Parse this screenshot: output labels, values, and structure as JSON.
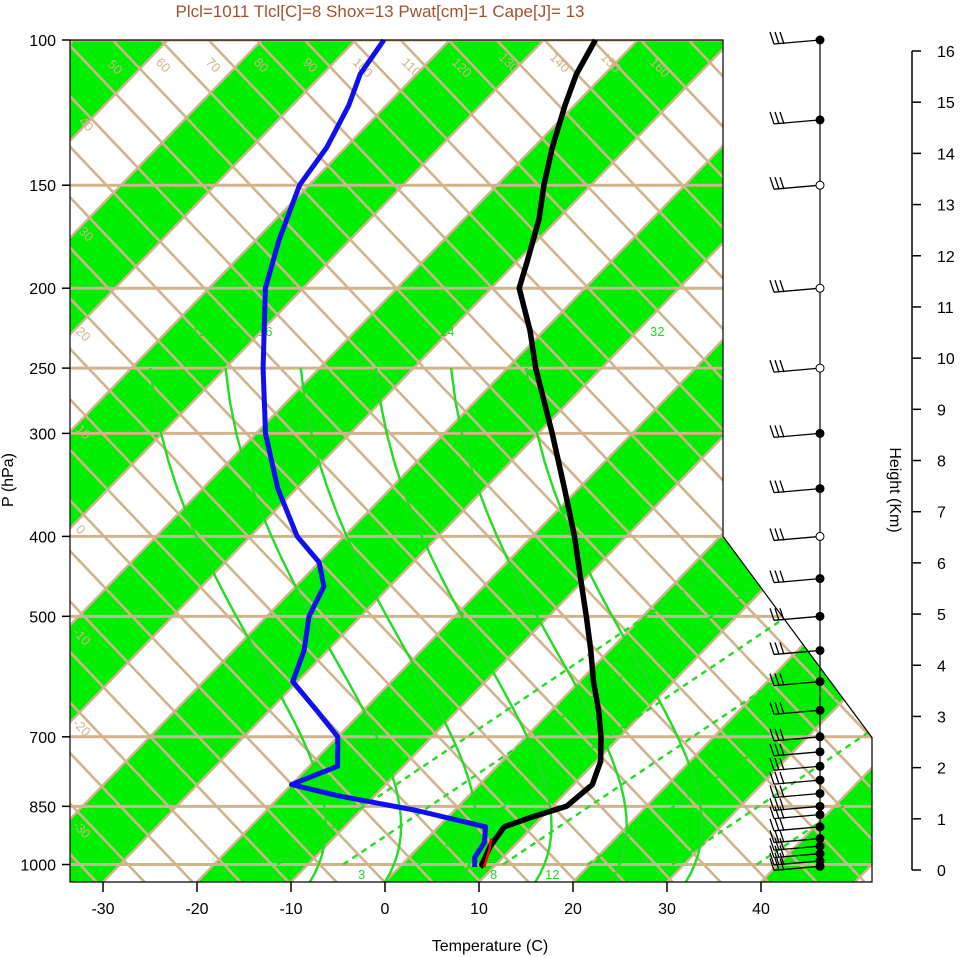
{
  "chart_data": {
    "type": "skew-t log-p sounding",
    "title": "Plcl=1011 Tlcl[C]=8 Shox=13 Pwat[cm]=1 Cape[J]= 13",
    "xlabel": "Temperature (C)",
    "ylabel": "P (hPa)",
    "height_label": "Height (Km)",
    "x_ticks": [
      "-30",
      "-20",
      "-10",
      "0",
      "10",
      "20",
      "30",
      "40"
    ],
    "p_ticks": [
      "100",
      "150",
      "200",
      "250",
      "300",
      "400",
      "500",
      "700",
      "850",
      "1000"
    ],
    "height_ticks": [
      "0",
      "1",
      "2",
      "3",
      "4",
      "5",
      "6",
      "7",
      "8",
      "9",
      "10",
      "11",
      "12",
      "13",
      "14",
      "15",
      "16"
    ],
    "isotherm_labels": [
      "50",
      "60",
      "70",
      "80",
      "90",
      "100",
      "110",
      "120",
      "130",
      "140",
      "150",
      "160",
      "40",
      "30",
      "20",
      "10",
      "0",
      "-10",
      "-20",
      "-30",
      "30",
      "20",
      "10",
      "0",
      "10",
      "20",
      "30"
    ],
    "mixing_ratio_labels": [
      "12",
      "16",
      "24",
      "32",
      "3",
      "8",
      "12"
    ],
    "temperature_profile": [
      {
        "p": 1007,
        "t": 9.0
      },
      {
        "p": 1000,
        "t": 8.5
      },
      {
        "p": 950,
        "t": 7.5
      },
      {
        "p": 900,
        "t": 7.0
      },
      {
        "p": 875,
        "t": 9.0
      },
      {
        "p": 850,
        "t": 11.5
      },
      {
        "p": 800,
        "t": 12.0
      },
      {
        "p": 750,
        "t": 10.5
      },
      {
        "p": 700,
        "t": 8.0
      },
      {
        "p": 650,
        "t": 5.0
      },
      {
        "p": 600,
        "t": 1.5
      },
      {
        "p": 550,
        "t": -2.0
      },
      {
        "p": 500,
        "t": -6.0
      },
      {
        "p": 450,
        "t": -10.5
      },
      {
        "p": 400,
        "t": -15.5
      },
      {
        "p": 350,
        "t": -21.5
      },
      {
        "p": 300,
        "t": -28.5
      },
      {
        "p": 250,
        "t": -37.0
      },
      {
        "p": 225,
        "t": -41.5
      },
      {
        "p": 200,
        "t": -47.0
      },
      {
        "p": 185,
        "t": -49.0
      },
      {
        "p": 165,
        "t": -52.0
      },
      {
        "p": 150,
        "t": -55.0
      },
      {
        "p": 135,
        "t": -58.0
      },
      {
        "p": 120,
        "t": -61.0
      },
      {
        "p": 110,
        "t": -63.0
      },
      {
        "p": 100,
        "t": -64.5
      }
    ],
    "dewpoint_profile": [
      {
        "p": 1007,
        "t": 8.0
      },
      {
        "p": 980,
        "t": 7.0
      },
      {
        "p": 940,
        "t": 6.5
      },
      {
        "p": 900,
        "t": 5.0
      },
      {
        "p": 860,
        "t": -4.0
      },
      {
        "p": 825,
        "t": -14.0
      },
      {
        "p": 800,
        "t": -20.0
      },
      {
        "p": 760,
        "t": -17.0
      },
      {
        "p": 700,
        "t": -20.0
      },
      {
        "p": 650,
        "t": -25.0
      },
      {
        "p": 600,
        "t": -30.5
      },
      {
        "p": 550,
        "t": -32.5
      },
      {
        "p": 500,
        "t": -35.5
      },
      {
        "p": 460,
        "t": -37.0
      },
      {
        "p": 430,
        "t": -40.0
      },
      {
        "p": 400,
        "t": -45.0
      },
      {
        "p": 350,
        "t": -52.0
      },
      {
        "p": 300,
        "t": -59.0
      },
      {
        "p": 250,
        "t": -66.0
      },
      {
        "p": 200,
        "t": -74.0
      },
      {
        "p": 175,
        "t": -77.5
      },
      {
        "p": 150,
        "t": -81.0
      },
      {
        "p": 135,
        "t": -82.0
      },
      {
        "p": 120,
        "t": -84.0
      },
      {
        "p": 110,
        "t": -86.0
      },
      {
        "p": 100,
        "t": -87.0
      }
    ],
    "parcel_profile": [
      {
        "p": 1007,
        "t": 9.0
      },
      {
        "p": 960,
        "t": 7.8
      },
      {
        "p": 930,
        "t": 6.8
      }
    ],
    "wind_levels_p": [
      1005,
      990,
      970,
      950,
      930,
      900,
      870,
      850,
      820,
      790,
      760,
      730,
      700,
      650,
      600,
      550,
      500,
      450,
      400,
      350,
      300,
      250,
      200,
      150,
      125,
      100
    ]
  },
  "colors": {
    "temperature": "#000000",
    "dewpoint": "#1010ee",
    "parcel": "#ff0000",
    "isotherm_band": "#00ee00",
    "background_lines": "#d2b48c",
    "mixing_ratio": "#22dd22",
    "title": "#a0522d"
  }
}
